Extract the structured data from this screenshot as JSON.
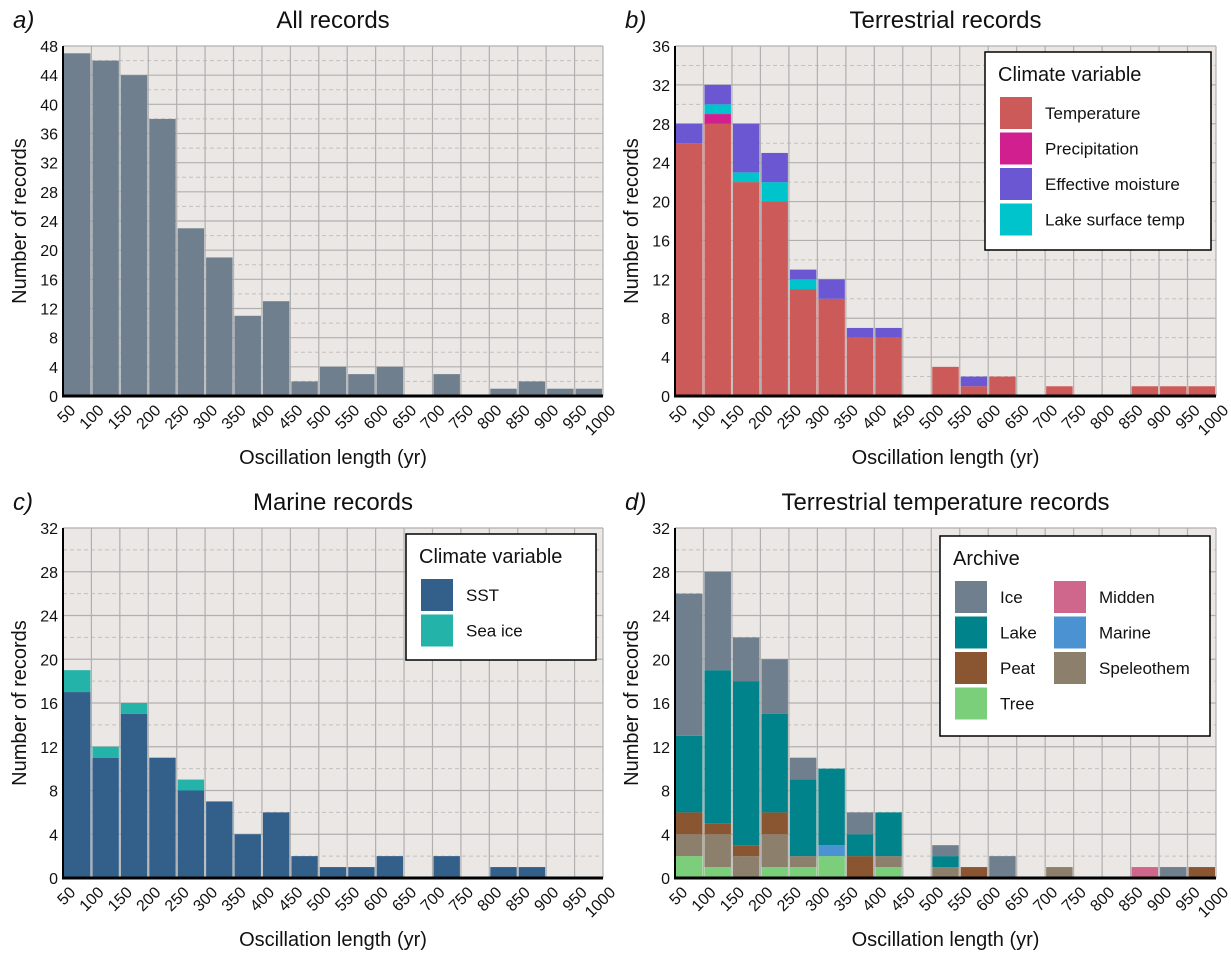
{
  "x_categories": [
    "50",
    "100",
    "150",
    "200",
    "250",
    "300",
    "350",
    "400",
    "450",
    "500",
    "550",
    "600",
    "650",
    "700",
    "750",
    "800",
    "850",
    "900",
    "950",
    "1000"
  ],
  "colors": {
    "plot_bg": "#ebe7e5",
    "grid": "#b0b0b0",
    "all": "#6f7f8e",
    "temperature": "#cc5a58",
    "precipitation": "#d21f8f",
    "effective_moisture": "#6c57d2",
    "lake_surface_temp": "#00c4cc",
    "sst": "#33608a",
    "sea_ice": "#23b3a8",
    "ice": "#6f7f8e",
    "lake": "#00838a",
    "peat": "#8a5631",
    "tree": "#7ccf7a",
    "midden": "#cf678c",
    "marine": "#4a92d2",
    "speleothem": "#8c806d"
  },
  "chart_data": [
    {
      "type": "bar",
      "panel_label": "a)",
      "title": "All records",
      "xlabel": "Oscillation length (yr)",
      "ylabel": "Number of records",
      "ylim": [
        0,
        48
      ],
      "y_ticks": [
        0,
        4,
        8,
        12,
        16,
        20,
        24,
        28,
        32,
        36,
        40,
        44,
        48
      ],
      "grid": true,
      "series": [
        {
          "key": "all",
          "values": [
            47,
            46,
            44,
            38,
            23,
            19,
            11,
            13,
            2,
            4,
            3,
            4,
            0,
            3,
            0,
            1,
            2,
            1,
            1
          ]
        }
      ]
    },
    {
      "type": "bar",
      "panel_label": "b)",
      "title": "Terrestrial records",
      "xlabel": "Oscillation length (yr)",
      "ylabel": "Number of records",
      "ylim": [
        0,
        36
      ],
      "y_ticks": [
        0,
        4,
        8,
        12,
        16,
        20,
        24,
        28,
        32,
        36
      ],
      "grid": true,
      "stacked": true,
      "legend": {
        "title": "Climate variable",
        "placement": "top-right",
        "items": [
          {
            "label": "Temperature",
            "key": "temperature"
          },
          {
            "label": "Precipitation",
            "key": "precipitation"
          },
          {
            "label": "Effective moisture",
            "key": "effective_moisture"
          },
          {
            "label": "Lake surface temp",
            "key": "lake_surface_temp"
          }
        ]
      },
      "series": [
        {
          "name": "Temperature",
          "key": "temperature",
          "values": [
            26,
            28,
            22,
            20,
            11,
            10,
            6,
            6,
            0,
            3,
            1,
            2,
            0,
            1,
            0,
            0,
            1,
            1,
            1
          ]
        },
        {
          "name": "Precipitation",
          "key": "precipitation",
          "values": [
            0,
            1,
            0,
            0,
            0,
            0,
            0,
            0,
            0,
            0,
            0,
            0,
            0,
            0,
            0,
            0,
            0,
            0,
            0
          ]
        },
        {
          "name": "Lake surface temp",
          "key": "lake_surface_temp",
          "values": [
            0,
            1,
            1,
            2,
            1,
            0,
            0,
            0,
            0,
            0,
            0,
            0,
            0,
            0,
            0,
            0,
            0,
            0,
            0
          ]
        },
        {
          "name": "Effective moisture",
          "key": "effective_moisture",
          "values": [
            2,
            2,
            5,
            3,
            1,
            2,
            1,
            1,
            0,
            0,
            1,
            0,
            0,
            0,
            0,
            0,
            0,
            0,
            0
          ]
        }
      ]
    },
    {
      "type": "bar",
      "panel_label": "c)",
      "title": "Marine records",
      "xlabel": "Oscillation length (yr)",
      "ylabel": "Number of records",
      "ylim": [
        0,
        32
      ],
      "y_ticks": [
        0,
        4,
        8,
        12,
        16,
        20,
        24,
        28,
        32
      ],
      "grid": true,
      "stacked": true,
      "legend": {
        "title": "Climate variable",
        "placement": "top-right",
        "items": [
          {
            "label": "SST",
            "key": "sst"
          },
          {
            "label": "Sea ice",
            "key": "sea_ice"
          }
        ]
      },
      "series": [
        {
          "name": "SST",
          "key": "sst",
          "values": [
            17,
            11,
            15,
            11,
            8,
            7,
            4,
            6,
            2,
            1,
            1,
            2,
            0,
            2,
            0,
            1,
            1,
            0,
            0
          ]
        },
        {
          "name": "Sea ice",
          "key": "sea_ice",
          "values": [
            2,
            1,
            1,
            0,
            1,
            0,
            0,
            0,
            0,
            0,
            0,
            0,
            0,
            0,
            0,
            0,
            0,
            0,
            0
          ]
        }
      ]
    },
    {
      "type": "bar",
      "panel_label": "d)",
      "title": "Terrestrial temperature records",
      "xlabel": "Oscillation length (yr)",
      "ylabel": "Number of records",
      "ylim": [
        0,
        32
      ],
      "y_ticks": [
        0,
        4,
        8,
        12,
        16,
        20,
        24,
        28,
        32
      ],
      "grid": true,
      "stacked": true,
      "legend": {
        "title": "Archive",
        "placement": "top-right",
        "items": [
          {
            "label": "Ice",
            "key": "ice"
          },
          {
            "label": "Lake",
            "key": "lake"
          },
          {
            "label": "Peat",
            "key": "peat"
          },
          {
            "label": "Tree",
            "key": "tree"
          },
          {
            "label": "Midden",
            "key": "midden"
          },
          {
            "label": "Marine",
            "key": "marine"
          },
          {
            "label": "Speleothem",
            "key": "speleothem"
          }
        ]
      },
      "series": [
        {
          "name": "Tree",
          "key": "tree",
          "values": [
            2,
            1,
            0,
            1,
            1,
            2,
            0,
            1,
            0,
            0,
            0,
            0,
            0,
            0,
            0,
            0,
            0,
            0,
            0
          ]
        },
        {
          "name": "Speleothem",
          "key": "speleothem",
          "values": [
            2,
            3,
            2,
            3,
            1,
            0,
            0,
            1,
            0,
            1,
            0,
            0,
            0,
            1,
            0,
            0,
            0,
            0,
            0
          ]
        },
        {
          "name": "Peat",
          "key": "peat",
          "values": [
            2,
            1,
            1,
            2,
            0,
            0,
            2,
            0,
            0,
            0,
            1,
            0,
            0,
            0,
            0,
            0,
            0,
            0,
            1
          ]
        },
        {
          "name": "Marine",
          "key": "marine",
          "values": [
            0,
            0,
            0,
            0,
            0,
            1,
            0,
            0,
            0,
            0,
            0,
            0,
            0,
            0,
            0,
            0,
            0,
            0,
            0
          ]
        },
        {
          "name": "Lake",
          "key": "lake",
          "values": [
            7,
            14,
            15,
            9,
            7,
            7,
            2,
            4,
            0,
            1,
            0,
            0,
            0,
            0,
            0,
            0,
            0,
            0,
            0
          ]
        },
        {
          "name": "Ice",
          "key": "ice",
          "values": [
            13,
            9,
            4,
            5,
            2,
            0,
            2,
            0,
            0,
            1,
            0,
            2,
            0,
            0,
            0,
            0,
            0,
            1,
            0
          ]
        },
        {
          "name": "Midden",
          "key": "midden",
          "values": [
            0,
            0,
            0,
            0,
            0,
            0,
            0,
            0,
            0,
            0,
            0,
            0,
            0,
            0,
            0,
            0,
            1,
            0,
            0
          ]
        }
      ]
    }
  ]
}
